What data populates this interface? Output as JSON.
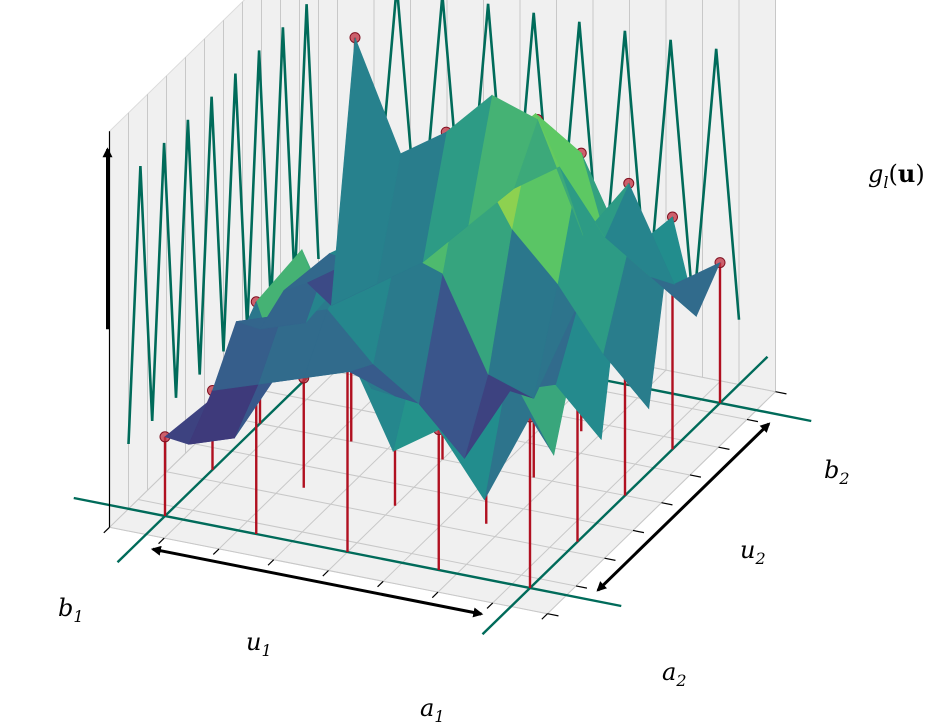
{
  "labels": {
    "a1": "a",
    "a1_sub": "1",
    "b1": "b",
    "b1_sub": "1",
    "a2": "a",
    "a2_sub": "2",
    "b2": "b",
    "b2_sub": "2",
    "u1": "u",
    "u1_sub": "1",
    "u2": "u",
    "u2_sub": "2",
    "g_main": "g",
    "g_sub": "l",
    "g_arg_open": "(",
    "g_arg": "u",
    "g_arg_close": ")"
  },
  "colors": {
    "pane": "#f0f0f0",
    "grid": "#c8c8c8",
    "basis": "#006b5a",
    "stem": "#b01020",
    "node": "#c03040",
    "viridis": [
      "#440154",
      "#3b528b",
      "#21908d",
      "#5dc863",
      "#fde725"
    ]
  },
  "chart_data": {
    "type": "surface3d",
    "grid_size": [
      9,
      9
    ],
    "z": [
      [
        0.5,
        0.3,
        0.6,
        0.2,
        0.8,
        0.15,
        0.7,
        0.3,
        0.4
      ],
      [
        0.2,
        0.55,
        0.95,
        0.35,
        0.55,
        0.3,
        0.55,
        0.4,
        0.3
      ],
      [
        0.4,
        0.8,
        0.7,
        0.3,
        0.2,
        0.5,
        0.85,
        0.5,
        0.6
      ],
      [
        0.3,
        0.55,
        0.4,
        0.05,
        0.25,
        0.65,
        0.95,
        0.7,
        0.4
      ],
      [
        0.6,
        0.4,
        0.3,
        0.2,
        0.55,
        0.9,
        0.8,
        0.6,
        0.75
      ],
      [
        0.9,
        0.6,
        0.35,
        0.3,
        0.6,
        0.7,
        0.6,
        0.45,
        0.8
      ],
      [
        0.7,
        0.4,
        0.3,
        0.45,
        0.5,
        0.55,
        0.5,
        0.3,
        0.65
      ],
      [
        0.35,
        0.15,
        0.25,
        0.4,
        0.3,
        0.45,
        0.35,
        0.2,
        0.55
      ],
      [
        0.2,
        0.1,
        0.2,
        0.35,
        0.25,
        0.3,
        0.25,
        0.1,
        0.9
      ]
    ],
    "basis_functions_per_axis": 9
  }
}
